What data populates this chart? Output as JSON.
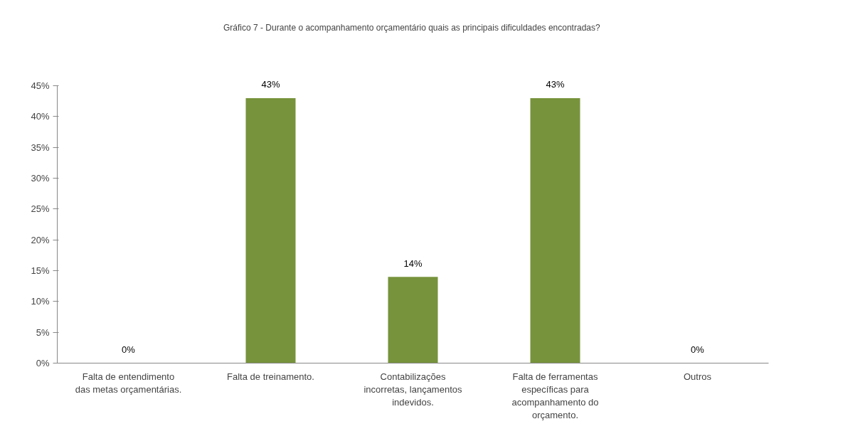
{
  "chart_data": {
    "type": "bar",
    "title": "Gráfico 7 -  Durante o acompanhamento orçamentário quais as principais dificuldades encontradas?",
    "categories": [
      "Falta de entendimento das metas orçamentárias.",
      "Falta de treinamento.",
      "Contabilizações incorretas, lançamentos indevidos.",
      "Falta de ferramentas específicas para acompanhamento do orçamento.",
      "Outros"
    ],
    "values": [
      0,
      43,
      14,
      43,
      0
    ],
    "value_labels": [
      "0%",
      "43%",
      "14%",
      "43%",
      "0%"
    ],
    "color": "#77933c",
    "ylim": [
      0,
      45
    ],
    "yticks": [
      {
        "value": 0,
        "label": "0%"
      },
      {
        "value": 5,
        "label": "5%"
      },
      {
        "value": 10,
        "label": "10%"
      },
      {
        "value": 15,
        "label": "15%"
      },
      {
        "value": 20,
        "label": "20%"
      },
      {
        "value": 25,
        "label": "25%"
      },
      {
        "value": 30,
        "label": "30%"
      },
      {
        "value": 35,
        "label": "35%"
      },
      {
        "value": 40,
        "label": "40%"
      },
      {
        "value": 45,
        "label": "45%"
      }
    ],
    "grid": false
  }
}
